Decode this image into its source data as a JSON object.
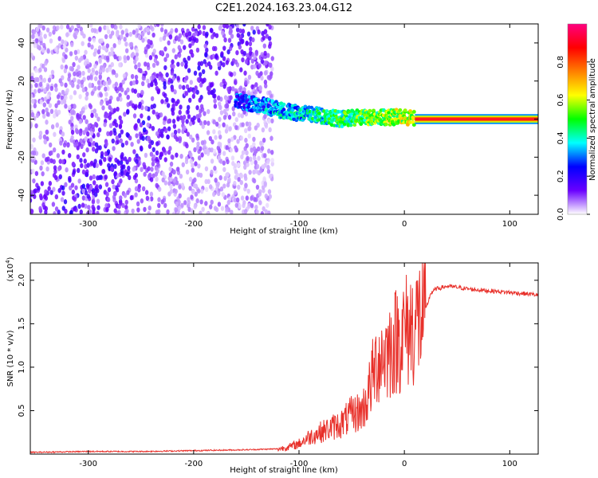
{
  "title": "C2E1.2024.163.23.04.G12",
  "chart_data": [
    {
      "type": "heatmap",
      "xlabel": "Height of straight line (km)",
      "ylabel": "Frequency (Hz)",
      "xlim": [
        -355,
        127
      ],
      "ylim": [
        -50,
        50
      ],
      "xticks": [
        "-300",
        "-200",
        "-100",
        "0",
        "100"
      ],
      "yticks": [
        "-40",
        "-20",
        "0",
        "20",
        "40"
      ],
      "colorbar": {
        "label": "Normalized spectral amplitude",
        "range": [
          0,
          1
        ],
        "ticks": [
          "0.0",
          "0.2",
          "0.4",
          "0.6",
          "0.8"
        ],
        "colors": [
          "#ffffff",
          "#6a00ff",
          "#0000ff",
          "#00ffff",
          "#00ff00",
          "#ffff00",
          "#ff7f00",
          "#ff0000",
          "#ff0080"
        ]
      },
      "signal_trace": {
        "x": [
          -160,
          -140,
          -120,
          -100,
          -80,
          -60,
          -40,
          -20,
          0,
          10,
          127
        ],
        "y": [
          9,
          8,
          5,
          3,
          2,
          0,
          1,
          1,
          1,
          0,
          0
        ]
      },
      "noise_region_x": [
        -355,
        -125
      ],
      "grid": false
    },
    {
      "type": "line",
      "xlabel": "Height of straight line (km)",
      "ylabel": "SNR (10 * v/v)",
      "multiplier": "(x10",
      "multiplier_exp": "4",
      "multiplier_close": ")",
      "xlim": [
        -355,
        127
      ],
      "ylim": [
        0,
        2.2
      ],
      "xticks": [
        "-300",
        "-200",
        "-100",
        "0",
        "100"
      ],
      "yticks": [
        "0.5",
        "1.0",
        "1.5",
        "2.0"
      ],
      "series": [
        {
          "color": "#e8302a",
          "x": [
            -355,
            -300,
            -250,
            -200,
            -150,
            -120,
            -110,
            -100,
            -90,
            -80,
            -70,
            -60,
            -50,
            -40,
            -35,
            -30,
            -25,
            -20,
            -15,
            -10,
            -5,
            0,
            10,
            20,
            25,
            30,
            40,
            50,
            60,
            70,
            80,
            90,
            100,
            110,
            120,
            127
          ],
          "y": [
            0.02,
            0.03,
            0.03,
            0.04,
            0.05,
            0.06,
            0.08,
            0.12,
            0.2,
            0.25,
            0.3,
            0.35,
            0.45,
            0.5,
            0.65,
            0.9,
            1.1,
            1.15,
            1.2,
            1.28,
            1.35,
            1.4,
            1.5,
            1.65,
            1.85,
            1.9,
            1.93,
            1.92,
            1.9,
            1.89,
            1.88,
            1.87,
            1.86,
            1.85,
            1.84,
            1.83
          ]
        }
      ],
      "grid": false
    }
  ]
}
